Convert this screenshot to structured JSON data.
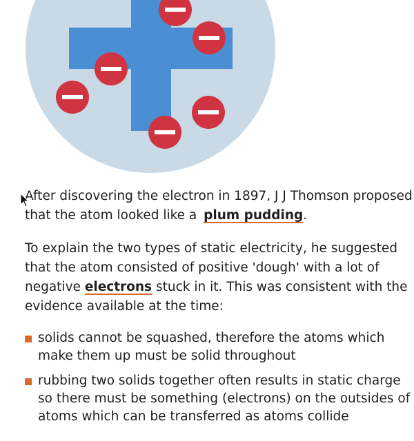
{
  "colors": {
    "atom_background": "#c9d9e6",
    "positive_charge": "#4a8fd4",
    "electron": "#cf3440",
    "electron_sign": "#ffffff",
    "accent": "#d8692a",
    "text": "#1f1f1f"
  },
  "illustration": {
    "atom_icon": "plum-pudding-atom",
    "electron_icon": "minus-sign"
  },
  "paragraph1": {
    "text_before": "After discovering the electron in 1897, J J Thomson proposed that the atom looked like a",
    "link_text": "plum pudding",
    "text_after": "."
  },
  "paragraph2": {
    "text_before": "To explain the two types of static electricity, he suggested that the atom consisted of positive 'dough' with a lot of negative",
    "link_text": "electrons",
    "text_after": "stuck in it. This was consistent with the evidence available at the time:"
  },
  "bullets": [
    "solids cannot be squashed, therefore the atoms which make them up must be solid throughout",
    "rubbing two solids together often results in static charge so there must be something (electrons) on the outsides of atoms which can be transferred as atoms collide"
  ]
}
